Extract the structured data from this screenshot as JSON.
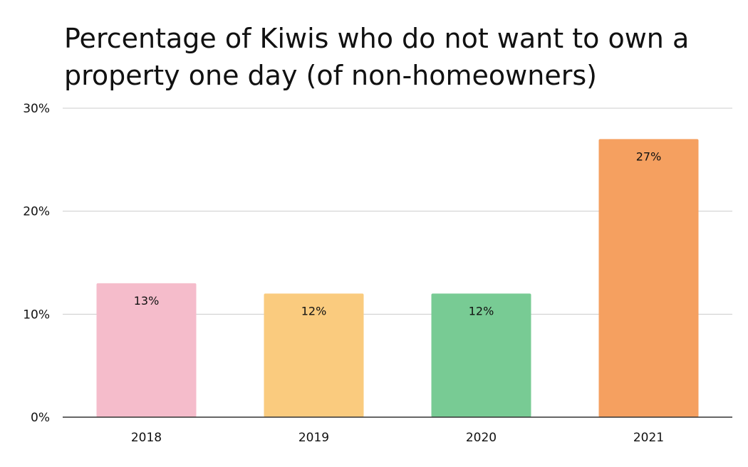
{
  "chart_data": {
    "type": "bar",
    "title": "Percentage of Kiwis who do not want to own a property one day (of non-homeowners)",
    "xlabel": "",
    "ylabel": "",
    "categories": [
      "2018",
      "2019",
      "2020",
      "2021"
    ],
    "values": [
      13,
      12,
      12,
      27
    ],
    "data_labels": [
      "13%",
      "12%",
      "12%",
      "27%"
    ],
    "colors": [
      "#F5BCCB",
      "#FACB7E",
      "#78CB94",
      "#F5A060"
    ],
    "ylim": [
      0,
      30
    ],
    "yticks": [
      0,
      10,
      20,
      30
    ],
    "ytick_labels": [
      "0%",
      "10%",
      "20%",
      "30%"
    ],
    "grid": true,
    "legend": "none"
  }
}
